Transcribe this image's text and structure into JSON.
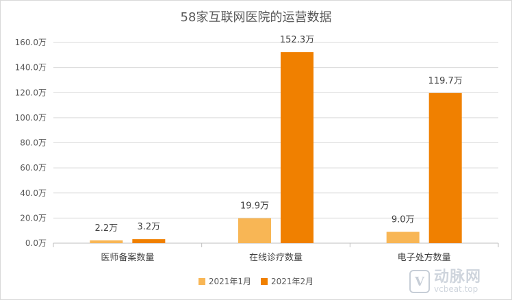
{
  "chart_data": {
    "type": "bar",
    "title": "58家互联网医院的运营数据",
    "categories": [
      "医师备案数量",
      "在线诊疗数量",
      "电子处方数量"
    ],
    "series": [
      {
        "name": "2021年1月",
        "values": [
          2.2,
          19.9,
          9.0
        ],
        "labels": [
          "2.2万",
          "19.9万",
          "9.0万"
        ],
        "color": "#f8b655"
      },
      {
        "name": "2021年2月",
        "values": [
          3.2,
          152.3,
          119.7
        ],
        "labels": [
          "3.2万",
          "152.3万",
          "119.7万"
        ],
        "color": "#f08000"
      }
    ],
    "y_ticks": [
      0,
      20,
      40,
      60,
      80,
      100,
      120,
      140,
      160
    ],
    "y_tick_labels": [
      "0.0万",
      "20.0万",
      "40.0万",
      "60.0万",
      "80.0万",
      "100.0万",
      "120.0万",
      "140.0万",
      "160.0万"
    ],
    "ylim": [
      0,
      160
    ],
    "grid": true,
    "legend_position": "bottom"
  },
  "watermark": {
    "logo_letter": "V",
    "text_cn": "动脉网",
    "text_en": "vcbeat.top"
  }
}
